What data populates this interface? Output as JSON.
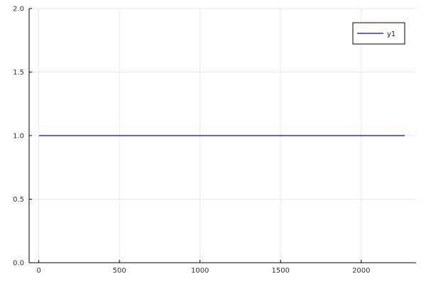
{
  "chart_data": {
    "type": "line",
    "title": "",
    "xlabel": "",
    "ylabel": "",
    "xlim": [
      -60,
      2340
    ],
    "ylim": [
      0,
      2
    ],
    "x_ticks": [
      0,
      500,
      1000,
      1500,
      2000
    ],
    "y_ticks": [
      0.0,
      0.5,
      1.0,
      1.5,
      2.0
    ],
    "x_tick_labels": [
      "0",
      "500",
      "1000",
      "1500",
      "2000"
    ],
    "y_tick_labels": [
      "0.0",
      "0.5",
      "1.0",
      "1.5",
      "2.0"
    ],
    "grid": true,
    "legend": {
      "position": "top-right",
      "entries": [
        "y1"
      ]
    },
    "series": [
      {
        "name": "y1",
        "color": "#0000ff",
        "x": [
          1,
          2270
        ],
        "y": [
          1,
          1
        ]
      }
    ]
  }
}
